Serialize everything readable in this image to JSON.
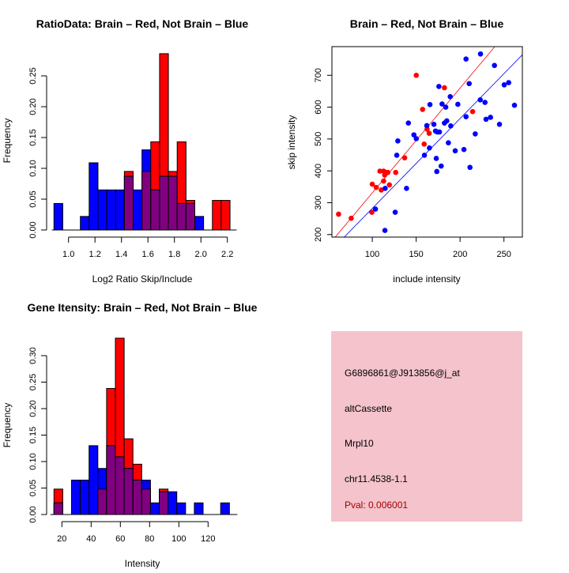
{
  "colors": {
    "red": "#ff0000",
    "blue": "#0000ff",
    "overlap": "#800080",
    "info_bg": "#f4c3cc",
    "pval": "#a00000"
  },
  "chart_data": [
    {
      "type": "bar",
      "title": "RatioData: Brain – Red, Not Brain – Blue",
      "xlabel": "Log2 Ratio Skip/Include",
      "ylabel": "Frequency",
      "bin_start": 0.89,
      "bin_width": 0.0665,
      "series": [
        {
          "name": "Brain",
          "color": "red",
          "values": [
            0,
            0,
            0,
            0,
            0,
            0,
            0,
            0,
            0.095,
            0,
            0.095,
            0.143,
            0.286,
            0.095,
            0.143,
            0.048,
            0,
            0,
            0.048,
            0.048
          ]
        },
        {
          "name": "Not Brain",
          "color": "blue",
          "values": [
            0.043,
            0,
            0,
            0.022,
            0.109,
            0.065,
            0.065,
            0.065,
            0.087,
            0.065,
            0.13,
            0.065,
            0.087,
            0.087,
            0.043,
            0.043,
            0.022,
            0,
            0,
            0
          ]
        }
      ],
      "xticks": [
        "1.0",
        "1.2",
        "1.4",
        "1.6",
        "1.8",
        "2.0",
        "2.2"
      ],
      "yticks": [
        "0.00",
        "0.05",
        "0.10",
        "0.15",
        "0.20",
        "0.25"
      ],
      "xlim": [
        0.85,
        2.27
      ],
      "ylim": [
        0,
        0.29
      ]
    },
    {
      "type": "scatter",
      "title": "Brain – Red, Not Brain – Blue",
      "xlabel": "include intensity",
      "ylabel": "skip intensity",
      "xlim": [
        54,
        271
      ],
      "ylim": [
        192,
        790
      ],
      "xticks": [
        "100",
        "150",
        "200",
        "250"
      ],
      "yticks": [
        "200",
        "300",
        "400",
        "500",
        "600",
        "700"
      ],
      "series": [
        {
          "name": "Brain",
          "color": "red",
          "fit": {
            "slope": 3.29,
            "intercept": 1.9
          },
          "points": [
            [
              61.6,
              264
            ],
            [
              76,
              251
            ],
            [
              99.4,
              270
            ],
            [
              100,
              358
            ],
            [
              104.5,
              348
            ],
            [
              108.7,
              399
            ],
            [
              110.2,
              340
            ],
            [
              112.9,
              399
            ],
            [
              112.9,
              368
            ],
            [
              114.1,
              387
            ],
            [
              115.3,
              395
            ],
            [
              117.7,
              395
            ],
            [
              119.5,
              356
            ],
            [
              126.7,
              395
            ],
            [
              136.9,
              441
            ],
            [
              150.1,
              700
            ],
            [
              157.3,
              593
            ],
            [
              159.1,
              484
            ],
            [
              162.4,
              531
            ],
            [
              164.8,
              518
            ],
            [
              182.2,
              661
            ],
            [
              214.3,
              586
            ]
          ]
        },
        {
          "name": "Not Brain",
          "color": "blue",
          "fit": {
            "slope": 2.82,
            "intercept": 0.2
          },
          "points": [
            [
              206.8,
              751
            ],
            [
              223.3,
              767
            ],
            [
              239.2,
              731
            ],
            [
              210.4,
              674
            ],
            [
              175.9,
              665
            ],
            [
              188.8,
              633
            ],
            [
              197.5,
              609
            ],
            [
              179.5,
              610
            ],
            [
              183.7,
              600
            ],
            [
              165.7,
              608
            ],
            [
              223,
              623
            ],
            [
              228.4,
              615
            ],
            [
              206.8,
              570
            ],
            [
              229.6,
              562
            ],
            [
              234.7,
              568
            ],
            [
              250.3,
              670
            ],
            [
              255.4,
              677
            ],
            [
              262,
              606
            ],
            [
              244.9,
              546
            ],
            [
              217.3,
              516
            ],
            [
              184.9,
              557
            ],
            [
              182.2,
              550
            ],
            [
              189.4,
              541
            ],
            [
              170.2,
              546
            ],
            [
              162.1,
              542
            ],
            [
              141.1,
              550
            ],
            [
              172,
              525
            ],
            [
              174.1,
              522
            ],
            [
              176.5,
              522
            ],
            [
              147.4,
              513
            ],
            [
              150.1,
              501
            ],
            [
              129.1,
              494
            ],
            [
              186.7,
              488
            ],
            [
              165.1,
              472
            ],
            [
              159.4,
              449
            ],
            [
              127.9,
              449
            ],
            [
              172.9,
              439
            ],
            [
              194.5,
              463
            ],
            [
              204.4,
              467
            ],
            [
              178.5,
              415
            ],
            [
              173.5,
              398
            ],
            [
              211.3,
              411
            ],
            [
              139,
              345
            ],
            [
              114.7,
              345
            ],
            [
              103.6,
              280
            ],
            [
              126.1,
              270
            ],
            [
              114.4,
              213
            ]
          ]
        }
      ]
    },
    {
      "type": "bar",
      "title": "Gene Itensity: Brain – Red, Not Brain – Blue",
      "xlabel": "Intensity",
      "ylabel": "Frequency",
      "bin_start": 14.6,
      "bin_width": 6,
      "series": [
        {
          "name": "Brain",
          "color": "red",
          "values": [
            0.048,
            0,
            0,
            0,
            0,
            0.048,
            0.238,
            0.333,
            0.143,
            0.095,
            0.048,
            0,
            0.048,
            0,
            0,
            0,
            0,
            0,
            0,
            0
          ]
        },
        {
          "name": "Not Brain",
          "color": "blue",
          "values": [
            0.022,
            0,
            0.065,
            0.065,
            0.13,
            0.087,
            0.13,
            0.109,
            0.087,
            0.065,
            0.065,
            0.022,
            0.043,
            0.043,
            0.022,
            0,
            0.022,
            0,
            0,
            0.022
          ]
        }
      ],
      "xticks": [
        "20",
        "40",
        "60",
        "80",
        "100",
        "120"
      ],
      "yticks": [
        "0.00",
        "0.05",
        "0.10",
        "0.15",
        "0.20",
        "0.25",
        "0.30"
      ],
      "xlim": [
        10,
        140
      ],
      "ylim": [
        0,
        0.34
      ]
    }
  ],
  "info": {
    "probe": "G6896861@J913856@j_at",
    "event": "altCassette",
    "gene": "Mrpl10",
    "location": "chr11.4538-1.1",
    "pval": "Pval: 0.006001"
  }
}
